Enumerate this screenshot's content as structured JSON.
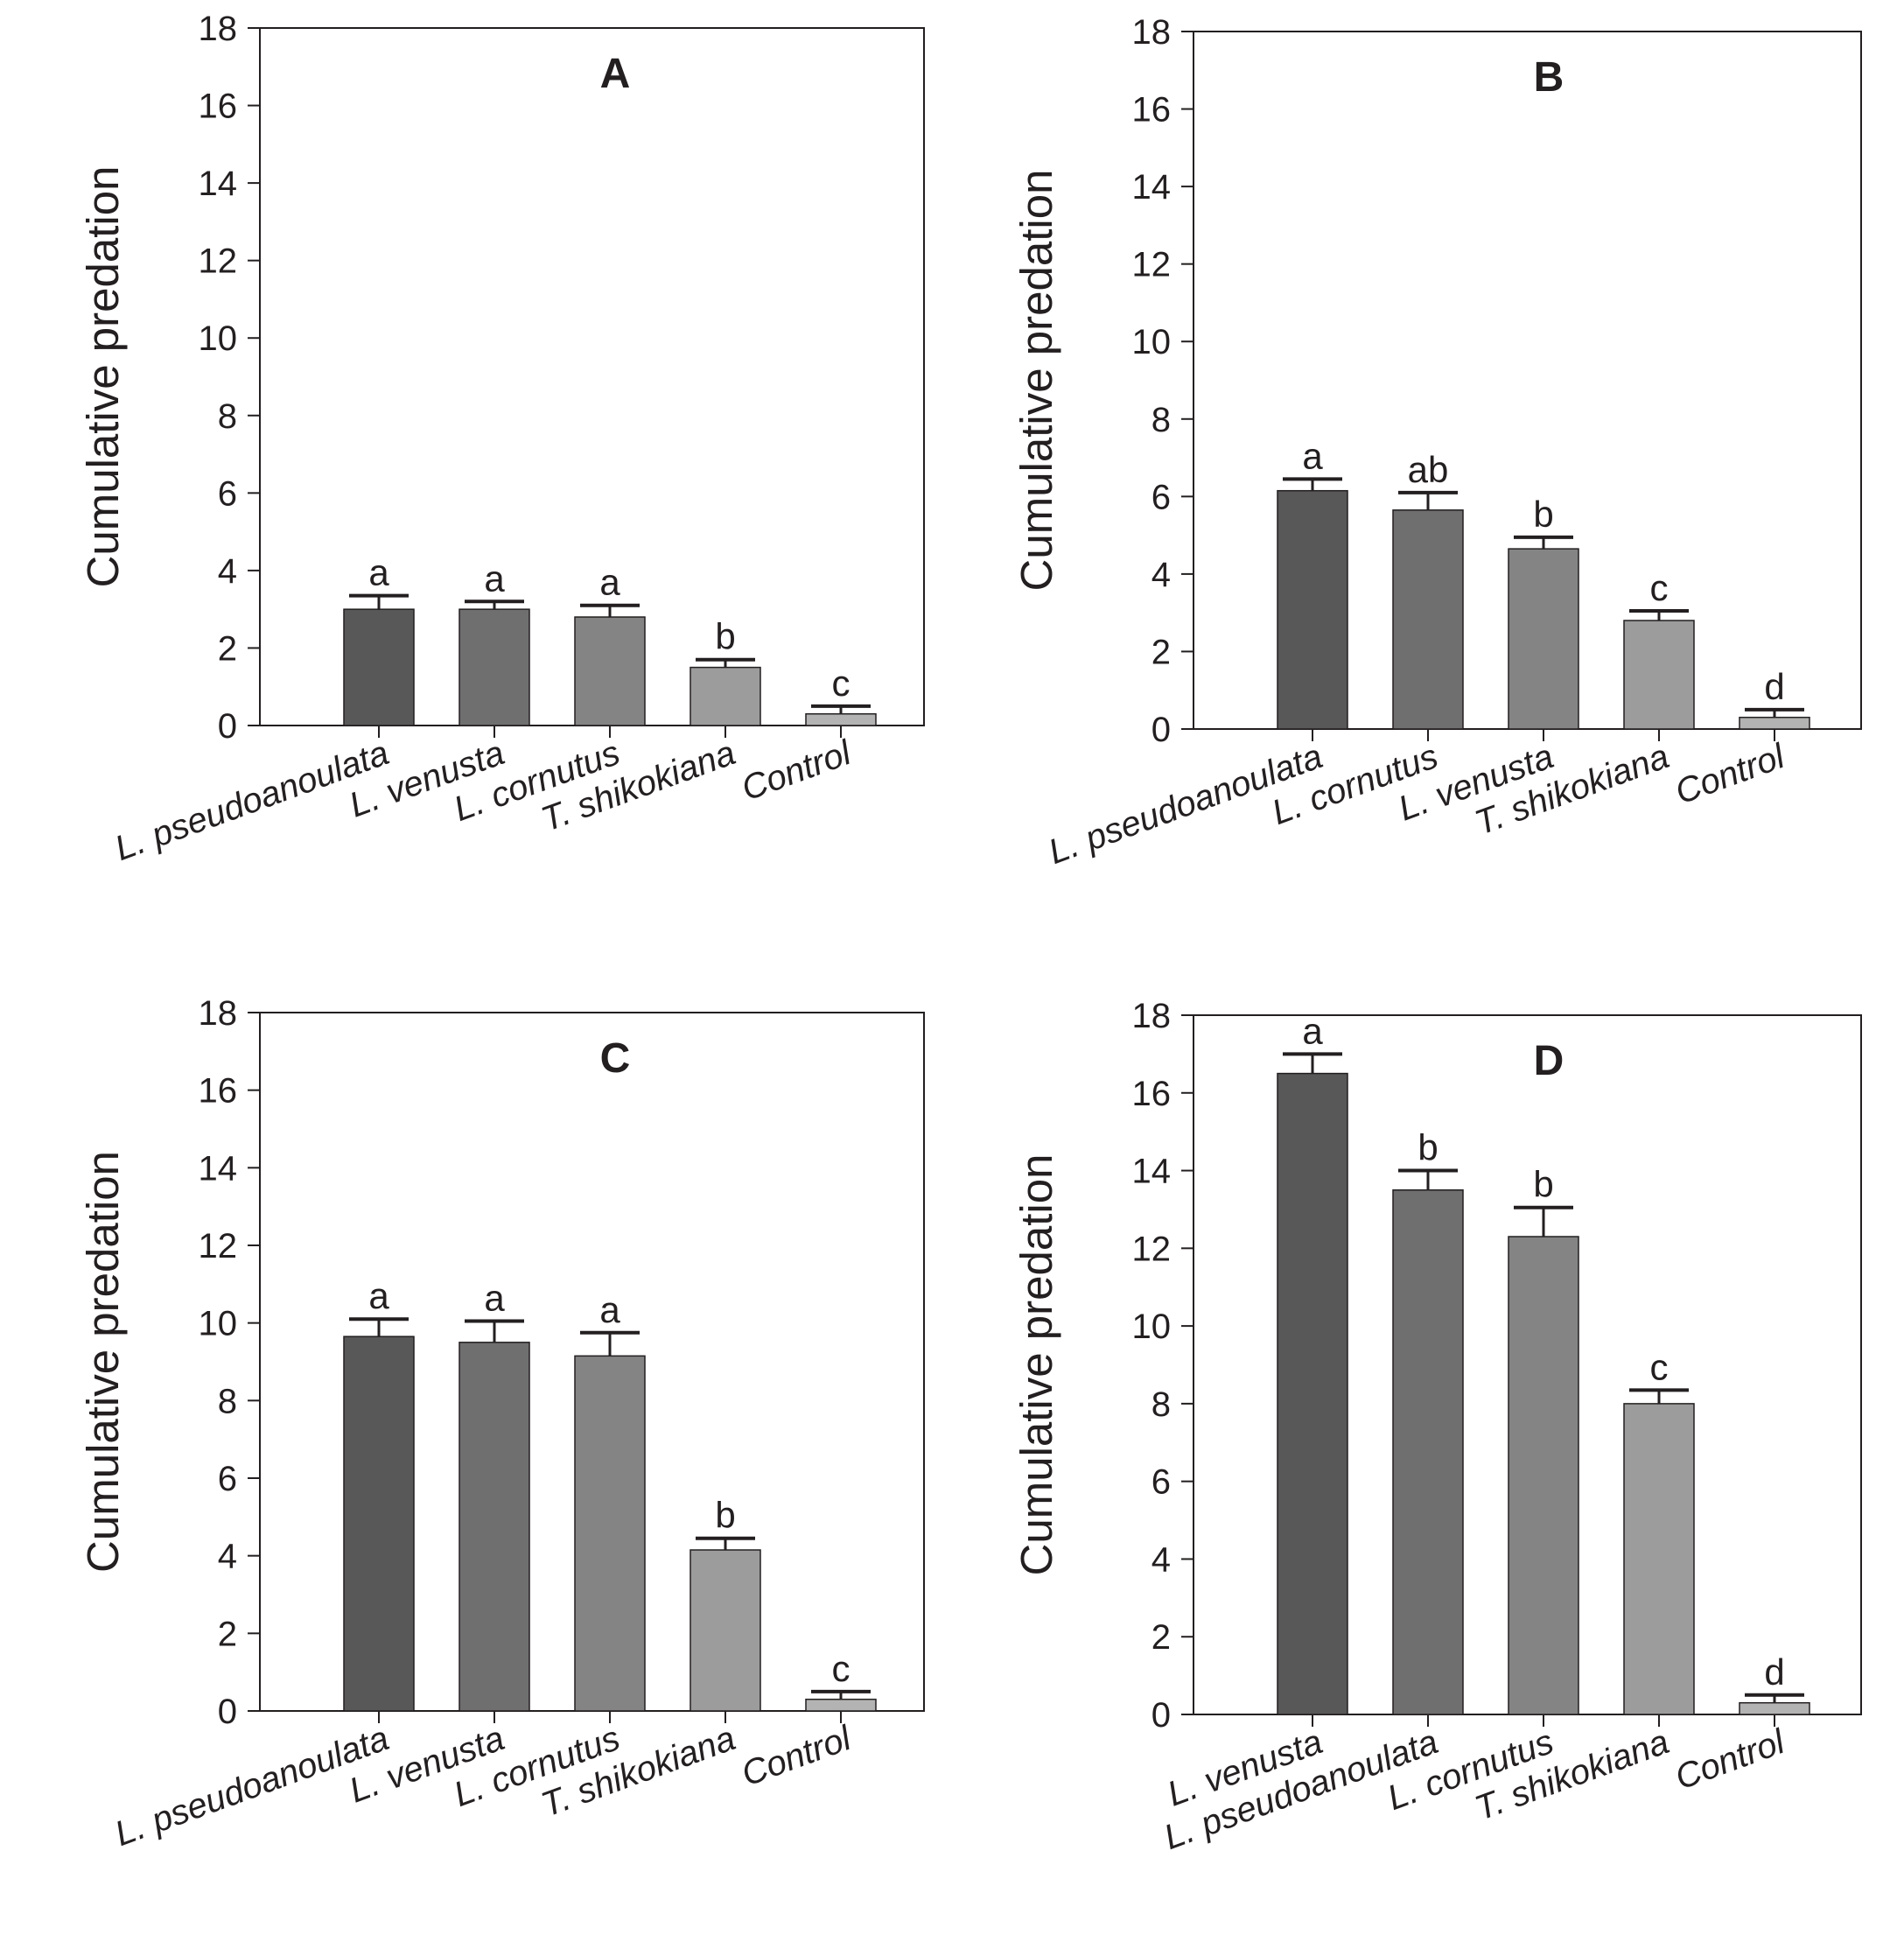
{
  "figure": {
    "panels": [
      "A",
      "B",
      "C",
      "D"
    ]
  },
  "colors": {
    "axis": "#231f20",
    "bars": [
      "#585858",
      "#6f6f6f",
      "#848484",
      "#9c9c9c",
      "#b3b3b3"
    ]
  },
  "chart_data": [
    {
      "type": "bar",
      "title": "A",
      "ylabel": "Cumulative predation",
      "xlabel": "",
      "ylim": [
        0,
        18
      ],
      "yticks": [
        "0",
        "2",
        "4",
        "6",
        "8",
        "10",
        "12",
        "14",
        "16",
        "18"
      ],
      "grid": false,
      "categories": [
        "L. pseudoanoulata",
        "L. venusta",
        "L. cornutus",
        "T. shikokiana",
        "Control"
      ],
      "values": [
        3.0,
        3.0,
        2.8,
        1.5,
        0.3
      ],
      "errors": [
        0.35,
        0.2,
        0.3,
        0.2,
        0.2
      ],
      "significance_letters": [
        "a",
        "a",
        "a",
        "b",
        "c"
      ]
    },
    {
      "type": "bar",
      "title": "B",
      "ylabel": "Cumulative predation",
      "xlabel": "",
      "ylim": [
        0,
        18
      ],
      "yticks": [
        "0",
        "2",
        "4",
        "6",
        "8",
        "10",
        "12",
        "14",
        "16",
        "18"
      ],
      "grid": false,
      "categories": [
        "L. pseudoanoulata",
        "L. cornutus",
        "L. venusta",
        "T. shikokiana",
        "Control"
      ],
      "values": [
        6.15,
        5.65,
        4.65,
        2.8,
        0.3
      ],
      "errors": [
        0.3,
        0.45,
        0.3,
        0.25,
        0.2
      ],
      "significance_letters": [
        "a",
        "ab",
        "b",
        "c",
        "d"
      ]
    },
    {
      "type": "bar",
      "title": "C",
      "ylabel": "Cumulative predation",
      "xlabel": "",
      "ylim": [
        0,
        18
      ],
      "yticks": [
        "0",
        "2",
        "4",
        "6",
        "8",
        "10",
        "12",
        "14",
        "16",
        "18"
      ],
      "grid": false,
      "categories": [
        "L. pseudoanoulata",
        "L. venusta",
        "L. cornutus",
        "T. shikokiana",
        "Control"
      ],
      "values": [
        9.65,
        9.5,
        9.15,
        4.15,
        0.3
      ],
      "errors": [
        0.45,
        0.55,
        0.6,
        0.3,
        0.2
      ],
      "significance_letters": [
        "a",
        "a",
        "a",
        "b",
        "c"
      ]
    },
    {
      "type": "bar",
      "title": "D",
      "ylabel": "Cumulative predation",
      "xlabel": "",
      "ylim": [
        0,
        18
      ],
      "yticks": [
        "0",
        "2",
        "4",
        "6",
        "8",
        "10",
        "12",
        "14",
        "16",
        "18"
      ],
      "grid": false,
      "categories": [
        "L. venusta",
        "L. pseudoanoulata",
        "L. cornutus",
        "T. shikokiana",
        "Control"
      ],
      "values": [
        16.5,
        13.5,
        12.3,
        8.0,
        0.3
      ],
      "errors": [
        0.5,
        0.5,
        0.75,
        0.35,
        0.2
      ],
      "significance_letters": [
        "a",
        "b",
        "b",
        "c",
        "d"
      ]
    }
  ]
}
